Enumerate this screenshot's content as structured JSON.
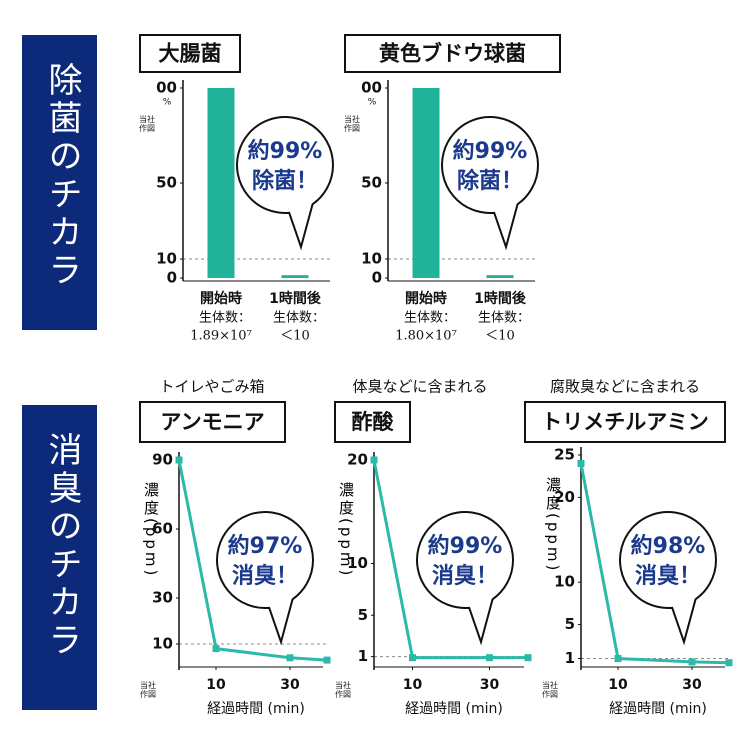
{
  "sections": [
    "除菌のチカラ",
    "消臭のチカラ"
  ],
  "chart_data": [
    {
      "type": "bar",
      "title": "大腸菌",
      "categories": [
        "開始時",
        "1時間後"
      ],
      "values": [
        100,
        1.5
      ],
      "color": "#21b29a",
      "ylim": [
        0,
        100
      ],
      "yticks": [
        0,
        10,
        50,
        {
          "value": 100,
          "label": "00"
        }
      ],
      "y_unit": "%",
      "reference_line": 10,
      "source_note": "当社作図",
      "count_label": "生体数：",
      "counts": [
        "1.89×10⁷",
        "＜10"
      ],
      "annotation": [
        "約99%",
        "除菌！"
      ]
    },
    {
      "type": "bar",
      "title": "黄色ブドウ球菌",
      "categories": [
        "開始時",
        "1時間後"
      ],
      "values": [
        100,
        1.5
      ],
      "color": "#21b29a",
      "ylim": [
        0,
        100
      ],
      "yticks": [
        0,
        10,
        50,
        {
          "value": 100,
          "label": "00"
        }
      ],
      "y_unit": "%",
      "reference_line": 10,
      "source_note": "当社作図",
      "count_label": "生体数：",
      "counts": [
        "1.80×10⁷",
        "＜10"
      ],
      "annotation": [
        "約99%",
        "除菌！"
      ]
    },
    {
      "type": "line",
      "subtitle": "トイレやごみ箱",
      "title": "アンモニア",
      "x": [
        0,
        10,
        30,
        40
      ],
      "values": [
        90,
        8,
        4,
        3
      ],
      "color": "#2bb9a9",
      "xlim": [
        0,
        40
      ],
      "xticks": [
        10,
        30
      ],
      "ylim": [
        0,
        90
      ],
      "yticks": [
        10,
        30,
        60,
        90
      ],
      "reference_line": 10,
      "x_label": "経過時間 (min)",
      "y_label": "濃度(ppm)",
      "source_note": "当社作図",
      "annotation": [
        "約97%",
        "消臭！"
      ]
    },
    {
      "type": "line",
      "subtitle": "体臭などに含まれる",
      "title": "酢酸",
      "x": [
        0,
        10,
        30,
        40
      ],
      "values": [
        20,
        0.9,
        0.9,
        0.9
      ],
      "color": "#2bb9a9",
      "xlim": [
        0,
        40
      ],
      "xticks": [
        10,
        30
      ],
      "ylim": [
        0,
        20
      ],
      "yticks": [
        1,
        5,
        10,
        20
      ],
      "reference_line": 1,
      "x_label": "経過時間 (min)",
      "y_label": "濃度(ppm)",
      "source_note": "当社作図",
      "annotation": [
        "約99%",
        "消臭！"
      ]
    },
    {
      "type": "line",
      "subtitle": "腐敗臭などに含まれる",
      "title": "トリメチルアミン",
      "x": [
        0,
        10,
        30,
        40
      ],
      "values": [
        24,
        1,
        0.6,
        0.5
      ],
      "color": "#2bb9a9",
      "xlim": [
        0,
        40
      ],
      "xticks": [
        10,
        30
      ],
      "ylim": [
        0,
        25
      ],
      "yticks": [
        1,
        5,
        10,
        20,
        25
      ],
      "reference_line": 1,
      "x_label": "経過時間 (min)",
      "y_label": "濃度(ppm)",
      "source_note": "当社作図",
      "annotation": [
        "約98%",
        "消臭！"
      ]
    }
  ]
}
